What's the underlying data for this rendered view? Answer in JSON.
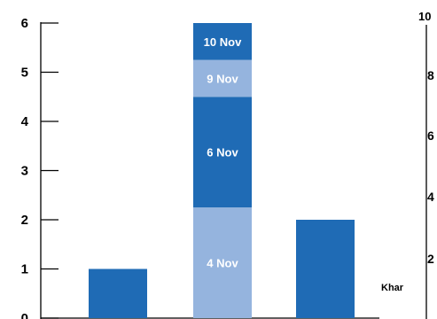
{
  "chart_data": [
    {
      "type": "bar",
      "stacked": true,
      "categories": [
        "",
        "",
        ""
      ],
      "yticks": [
        "0",
        "1",
        "2",
        "3",
        "4",
        "5",
        "6"
      ],
      "ylim": [
        0,
        6
      ],
      "grid": false,
      "bars": [
        {
          "segments": [
            {
              "value": 1,
              "label": "",
              "color": "#1f6bb5"
            }
          ]
        },
        {
          "segments": [
            {
              "value": 2.25,
              "label": "4 Nov",
              "color": "#95b4de"
            },
            {
              "value": 2.25,
              "label": "6 Nov",
              "color": "#1f6bb5"
            },
            {
              "value": 0.75,
              "label": "9 Nov",
              "color": "#95b4de"
            },
            {
              "value": 0.75,
              "label": "10 Nov",
              "color": "#1f6bb5"
            }
          ]
        },
        {
          "segments": [
            {
              "value": 2,
              "label": "",
              "color": "#1f6bb5"
            }
          ]
        }
      ]
    },
    {
      "type": "bar",
      "partially_visible": true,
      "yticks": [
        "2",
        "4",
        "6",
        "8",
        "10"
      ],
      "category_label_fragment": "Khar"
    }
  ],
  "colors": {
    "dark_blue": "#1f6bb5",
    "light_blue": "#95b4de",
    "axis": "#000000"
  }
}
